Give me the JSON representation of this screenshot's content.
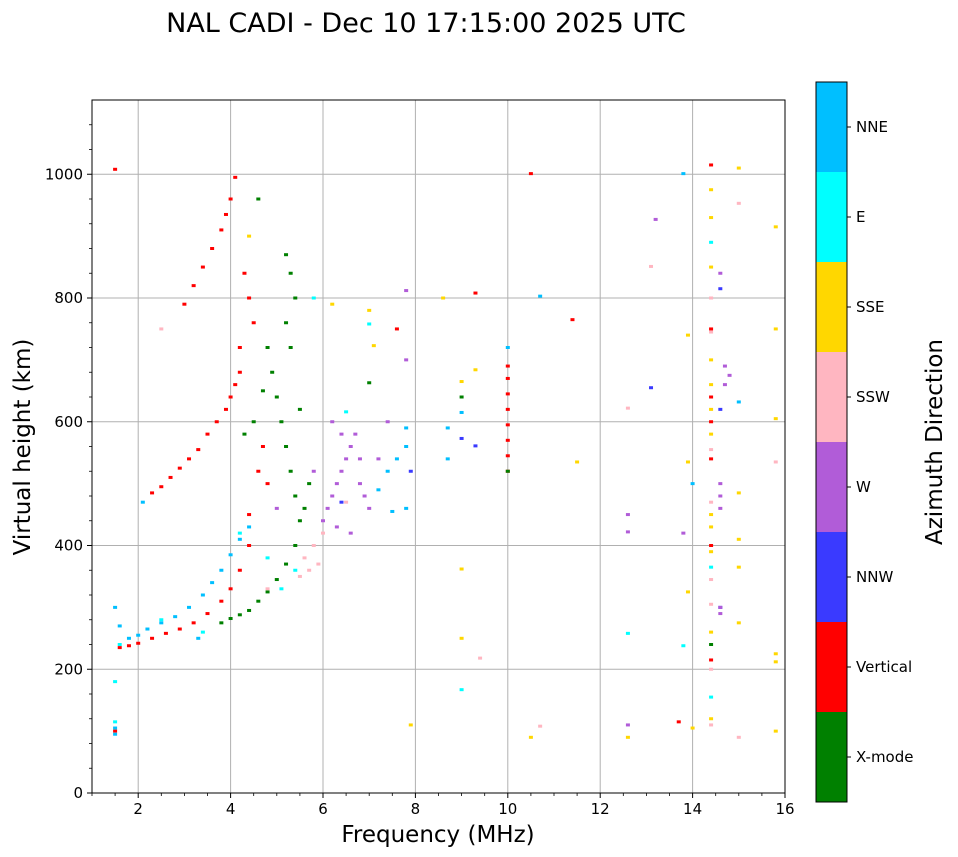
{
  "chart_data": {
    "type": "scatter",
    "title": "NAL CADI - Dec 10 17:15:00 2025 UTC",
    "xlabel": "Frequency (MHz)",
    "ylabel": "Virtual height (km)",
    "xlim": [
      1,
      16
    ],
    "ylim": [
      0,
      1120
    ],
    "x_ticks": [
      2,
      4,
      6,
      8,
      10,
      12,
      14,
      16
    ],
    "y_ticks": [
      0,
      200,
      400,
      600,
      800,
      1000
    ],
    "x_tick_labels": [
      "2",
      "4",
      "6",
      "8",
      "10",
      "12",
      "14",
      "16"
    ],
    "y_tick_labels": [
      "0",
      "200",
      "400",
      "600",
      "800",
      "1000"
    ],
    "grid": true,
    "colorbar": {
      "label": "Azimuth Direction",
      "categories": [
        {
          "name": "X-mode",
          "color": "#008000"
        },
        {
          "name": "Vertical",
          "color": "#ff0000"
        },
        {
          "name": "NNW",
          "color": "#3a3aff"
        },
        {
          "name": "W",
          "color": "#b15cd8"
        },
        {
          "name": "SSW",
          "color": "#ffb6c1"
        },
        {
          "name": "SSE",
          "color": "#ffd700"
        },
        {
          "name": "E",
          "color": "#00ffff"
        },
        {
          "name": "NNE",
          "color": "#00bfff"
        }
      ]
    },
    "series": [
      {
        "name": "Vertical",
        "points": [
          [
            1.6,
            235
          ],
          [
            1.8,
            238
          ],
          [
            2.0,
            242
          ],
          [
            2.3,
            250
          ],
          [
            2.6,
            258
          ],
          [
            2.9,
            265
          ],
          [
            3.2,
            275
          ],
          [
            3.5,
            290
          ],
          [
            3.8,
            310
          ],
          [
            4.0,
            330
          ],
          [
            4.2,
            360
          ],
          [
            4.4,
            400
          ],
          [
            2.3,
            485
          ],
          [
            2.5,
            495
          ],
          [
            2.7,
            510
          ],
          [
            2.9,
            525
          ],
          [
            3.1,
            540
          ],
          [
            3.3,
            555
          ],
          [
            3.5,
            580
          ],
          [
            3.7,
            600
          ],
          [
            3.9,
            620
          ],
          [
            4.0,
            640
          ],
          [
            4.1,
            660
          ],
          [
            4.2,
            680
          ],
          [
            3.0,
            790
          ],
          [
            3.2,
            820
          ],
          [
            3.4,
            850
          ],
          [
            3.6,
            880
          ],
          [
            3.8,
            910
          ],
          [
            3.9,
            935
          ],
          [
            4.0,
            960
          ],
          [
            4.1,
            995
          ],
          [
            4.3,
            840
          ],
          [
            4.4,
            800
          ],
          [
            4.5,
            760
          ],
          [
            4.2,
            720
          ],
          [
            4.6,
            520
          ],
          [
            4.8,
            500
          ],
          [
            4.4,
            450
          ],
          [
            4.7,
            560
          ],
          [
            10.0,
            520
          ],
          [
            10.0,
            545
          ],
          [
            10.0,
            570
          ],
          [
            10.0,
            595
          ],
          [
            10.0,
            620
          ],
          [
            10.0,
            645
          ],
          [
            10.0,
            670
          ],
          [
            10.0,
            690
          ],
          [
            14.4,
            1015
          ],
          [
            14.4,
            750
          ],
          [
            14.4,
            640
          ],
          [
            14.4,
            600
          ],
          [
            14.4,
            540
          ],
          [
            14.4,
            400
          ],
          [
            14.4,
            215
          ],
          [
            1.5,
            1008
          ],
          [
            10.5,
            1001
          ],
          [
            9.3,
            808
          ],
          [
            11.4,
            765
          ],
          [
            13.7,
            115
          ],
          [
            1.5,
            100
          ],
          [
            7.6,
            750
          ]
        ]
      },
      {
        "name": "X-mode",
        "points": [
          [
            3.8,
            275
          ],
          [
            4.0,
            282
          ],
          [
            4.2,
            288
          ],
          [
            4.4,
            295
          ],
          [
            4.6,
            310
          ],
          [
            4.8,
            325
          ],
          [
            5.0,
            345
          ],
          [
            5.2,
            370
          ],
          [
            5.4,
            400
          ],
          [
            5.5,
            440
          ],
          [
            5.4,
            480
          ],
          [
            5.3,
            520
          ],
          [
            5.2,
            560
          ],
          [
            5.1,
            600
          ],
          [
            5.0,
            640
          ],
          [
            4.9,
            680
          ],
          [
            4.8,
            720
          ],
          [
            5.2,
            760
          ],
          [
            5.4,
            800
          ],
          [
            5.3,
            840
          ],
          [
            5.2,
            870
          ],
          [
            5.3,
            720
          ],
          [
            4.7,
            650
          ],
          [
            4.5,
            600
          ],
          [
            4.3,
            580
          ],
          [
            5.6,
            460
          ],
          [
            5.5,
            620
          ],
          [
            5.7,
            500
          ],
          [
            4.6,
            960
          ],
          [
            9.0,
            640
          ],
          [
            7.0,
            663
          ],
          [
            10.0,
            520
          ],
          [
            14.4,
            240
          ]
        ]
      },
      {
        "name": "NNE",
        "points": [
          [
            1.5,
            300
          ],
          [
            1.6,
            270
          ],
          [
            1.8,
            250
          ],
          [
            2.0,
            255
          ],
          [
            2.2,
            265
          ],
          [
            2.5,
            275
          ],
          [
            2.8,
            285
          ],
          [
            3.1,
            300
          ],
          [
            3.4,
            320
          ],
          [
            3.6,
            340
          ],
          [
            3.8,
            360
          ],
          [
            4.0,
            385
          ],
          [
            4.2,
            410
          ],
          [
            4.4,
            430
          ],
          [
            1.5,
            105
          ],
          [
            1.5,
            95
          ],
          [
            2.1,
            470
          ],
          [
            3.3,
            250
          ],
          [
            7.2,
            490
          ],
          [
            7.4,
            520
          ],
          [
            7.6,
            540
          ],
          [
            7.8,
            560
          ],
          [
            7.8,
            590
          ],
          [
            8.7,
            590
          ],
          [
            8.7,
            540
          ],
          [
            9.0,
            615
          ],
          [
            10.0,
            720
          ],
          [
            10.7,
            803
          ],
          [
            7.8,
            460
          ],
          [
            7.5,
            455
          ],
          [
            13.8,
            1001
          ],
          [
            15.0,
            632
          ],
          [
            14.0,
            500
          ]
        ]
      },
      {
        "name": "E",
        "points": [
          [
            1.5,
            180
          ],
          [
            1.5,
            115
          ],
          [
            1.6,
            240
          ],
          [
            2.5,
            280
          ],
          [
            3.4,
            260
          ],
          [
            4.2,
            420
          ],
          [
            4.8,
            380
          ],
          [
            5.1,
            330
          ],
          [
            5.4,
            360
          ],
          [
            9.0,
            167
          ],
          [
            12.6,
            258
          ],
          [
            13.8,
            238
          ],
          [
            14.4,
            155
          ],
          [
            14.4,
            365
          ],
          [
            14.4,
            890
          ],
          [
            6.5,
            616
          ],
          [
            5.8,
            800
          ],
          [
            7.0,
            758
          ]
        ]
      },
      {
        "name": "NNW",
        "points": [
          [
            9.0,
            573
          ],
          [
            9.3,
            561
          ],
          [
            13.1,
            655
          ],
          [
            14.6,
            815
          ],
          [
            14.6,
            620
          ],
          [
            14.6,
            300
          ],
          [
            6.4,
            470
          ],
          [
            7.9,
            520
          ]
        ]
      },
      {
        "name": "W",
        "points": [
          [
            6.0,
            440
          ],
          [
            6.1,
            460
          ],
          [
            6.2,
            480
          ],
          [
            6.3,
            500
          ],
          [
            6.4,
            520
          ],
          [
            6.5,
            540
          ],
          [
            6.6,
            560
          ],
          [
            6.7,
            580
          ],
          [
            6.8,
            500
          ],
          [
            6.9,
            480
          ],
          [
            7.0,
            460
          ],
          [
            6.3,
            430
          ],
          [
            6.6,
            420
          ],
          [
            6.2,
            600
          ],
          [
            6.4,
            580
          ],
          [
            6.8,
            540
          ],
          [
            7.2,
            540
          ],
          [
            7.4,
            600
          ],
          [
            5.0,
            460
          ],
          [
            5.8,
            520
          ],
          [
            13.2,
            927
          ],
          [
            14.6,
            840
          ],
          [
            14.7,
            690
          ],
          [
            14.7,
            660
          ],
          [
            14.8,
            675
          ],
          [
            14.6,
            500
          ],
          [
            14.6,
            480
          ],
          [
            14.6,
            460
          ],
          [
            14.6,
            300
          ],
          [
            14.6,
            290
          ],
          [
            12.6,
            450
          ],
          [
            12.6,
            422
          ],
          [
            12.6,
            110
          ],
          [
            13.8,
            420
          ],
          [
            7.8,
            812
          ],
          [
            7.8,
            700
          ]
        ]
      },
      {
        "name": "SSW",
        "points": [
          [
            5.6,
            380
          ],
          [
            5.7,
            360
          ],
          [
            5.8,
            400
          ],
          [
            5.9,
            370
          ],
          [
            6.0,
            420
          ],
          [
            5.5,
            350
          ],
          [
            4.8,
            330
          ],
          [
            2.5,
            750
          ],
          [
            12.6,
            622
          ],
          [
            13.1,
            851
          ],
          [
            14.4,
            800
          ],
          [
            14.4,
            745
          ],
          [
            14.4,
            555
          ],
          [
            14.4,
            470
          ],
          [
            14.4,
            345
          ],
          [
            14.4,
            305
          ],
          [
            14.4,
            200
          ],
          [
            14.4,
            110
          ],
          [
            15.0,
            90
          ],
          [
            15.0,
            953
          ],
          [
            15.8,
            535
          ],
          [
            9.4,
            218
          ],
          [
            10.7,
            108
          ],
          [
            6.5,
            470
          ]
        ]
      },
      {
        "name": "SSE",
        "points": [
          [
            6.2,
            790
          ],
          [
            7.1,
            723
          ],
          [
            8.6,
            800
          ],
          [
            9.0,
            665
          ],
          [
            9.0,
            362
          ],
          [
            9.0,
            250
          ],
          [
            7.9,
            110
          ],
          [
            10.5,
            90
          ],
          [
            11.5,
            535
          ],
          [
            12.6,
            90
          ],
          [
            13.9,
            740
          ],
          [
            13.9,
            535
          ],
          [
            13.9,
            325
          ],
          [
            14.0,
            105
          ],
          [
            14.4,
            975
          ],
          [
            14.4,
            930
          ],
          [
            14.4,
            850
          ],
          [
            14.4,
            700
          ],
          [
            14.4,
            660
          ],
          [
            14.4,
            620
          ],
          [
            14.4,
            580
          ],
          [
            14.4,
            450
          ],
          [
            14.4,
            430
          ],
          [
            14.4,
            390
          ],
          [
            14.4,
            260
          ],
          [
            14.4,
            120
          ],
          [
            15.0,
            1010
          ],
          [
            15.0,
            485
          ],
          [
            15.0,
            410
          ],
          [
            15.0,
            365
          ],
          [
            15.0,
            275
          ],
          [
            15.8,
            915
          ],
          [
            15.8,
            750
          ],
          [
            15.8,
            605
          ],
          [
            15.8,
            225
          ],
          [
            15.8,
            212
          ],
          [
            15.8,
            100
          ],
          [
            4.4,
            900
          ],
          [
            7.0,
            780
          ],
          [
            9.3,
            684
          ]
        ]
      }
    ]
  }
}
